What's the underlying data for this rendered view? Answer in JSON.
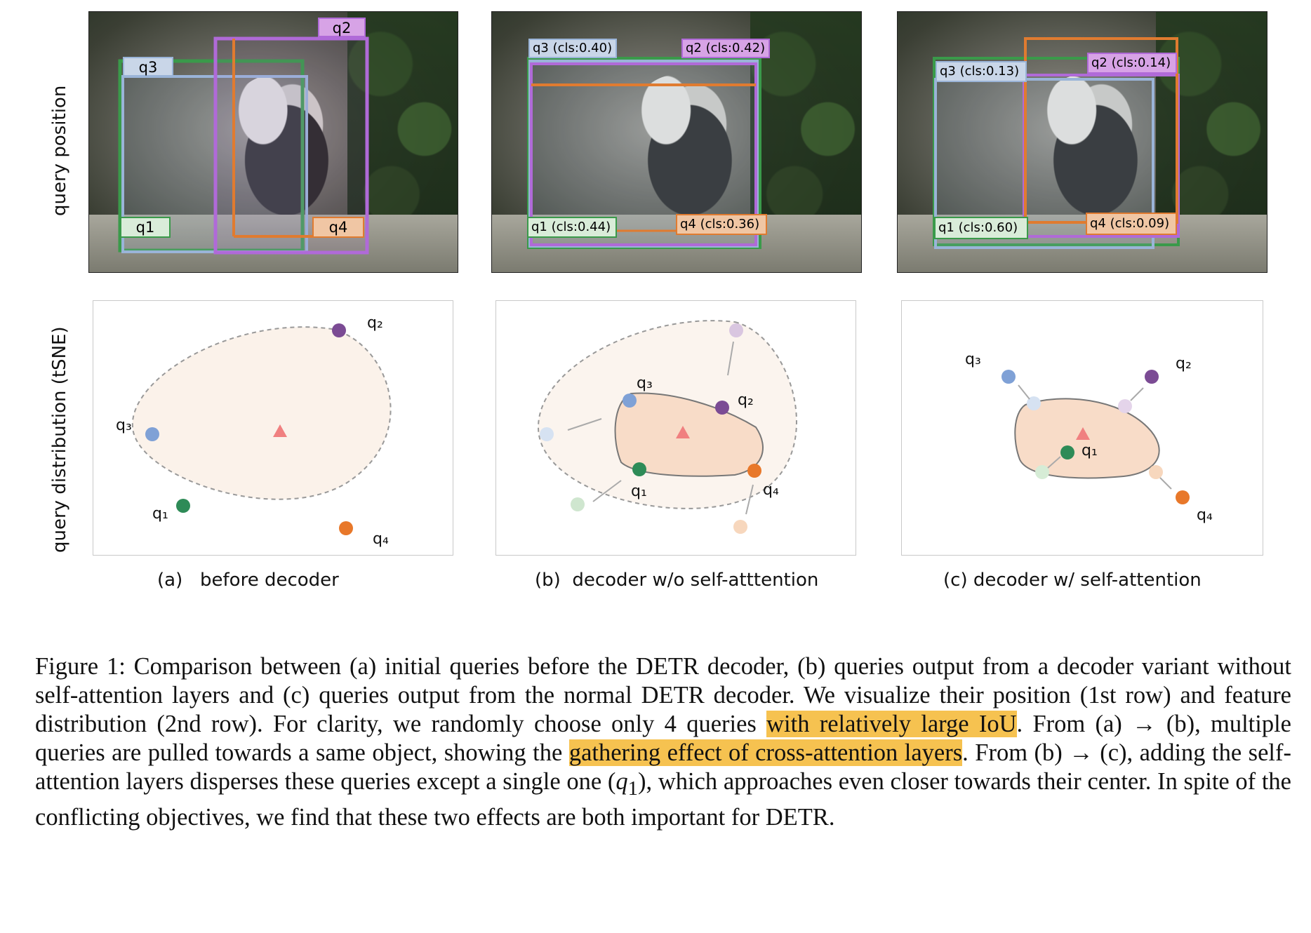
{
  "row_labels": {
    "top": "query position",
    "bottom": "query distribution (tSNE)"
  },
  "panels": [
    {
      "sub_label": "(a)   before decoder",
      "boxes": [
        {
          "label": "q3",
          "cls": ""
        },
        {
          "label": "q2",
          "cls": ""
        },
        {
          "label": "q1",
          "cls": ""
        },
        {
          "label": "q4",
          "cls": ""
        }
      ],
      "points": [
        "q2",
        "q3",
        "q1",
        "q4"
      ]
    },
    {
      "sub_label": "(b)  decoder w/o self-atttention",
      "boxes": [
        {
          "label": "q3",
          "cls": "(cls:0.40)"
        },
        {
          "label": "q2",
          "cls": "(cls:0.42)"
        },
        {
          "label": "q1",
          "cls": "(cls:0.44)"
        },
        {
          "label": "q4",
          "cls": "(cls:0.36)"
        }
      ],
      "points": [
        "q3",
        "q2",
        "q1",
        "q4"
      ]
    },
    {
      "sub_label": "(c) decoder w/ self-attention",
      "boxes": [
        {
          "label": "q3",
          "cls": "(cls:0.13)"
        },
        {
          "label": "q2",
          "cls": "(cls:0.14)"
        },
        {
          "label": "q1",
          "cls": "(cls:0.60)"
        },
        {
          "label": "q4",
          "cls": "(cls:0.09)"
        }
      ],
      "points": [
        "q3",
        "q2",
        "q1",
        "q4"
      ]
    }
  ],
  "colors": {
    "q1": "#2e8b57",
    "q2": "#7b4b94",
    "q3": "#7fa1d6",
    "q4": "#e8782a",
    "center": "#f08080",
    "box_q1": "#3a9a4a",
    "box_q2": "#b06ad8",
    "box_q3": "#9ab4d8",
    "box_q4": "#e07b30"
  },
  "caption": {
    "part1": "Figure 1: Comparison between (a) initial queries before the DETR decoder, (b) queries output from a decoder variant without self-attention layers and (c) queries output from the normal DETR decoder. We visualize their position (1st row) and feature distribution (2nd row). For clarity, we randomly choose only 4 queries ",
    "hl1": "with relatively large IoU",
    "part2": ". From (a) → (b), multiple queries are pulled towards a same object, showing the ",
    "hl2": "gathering effect of cross-attention layers",
    "part3": ". From (b) → (c), adding the self-attention layers disperses these queries except a single one (",
    "q1": "q",
    "q1_sub": "1",
    "part4": "), which approaches even closer towards their center. In spite of the conflicting objectives, we find that these two effects are both important for DETR."
  }
}
